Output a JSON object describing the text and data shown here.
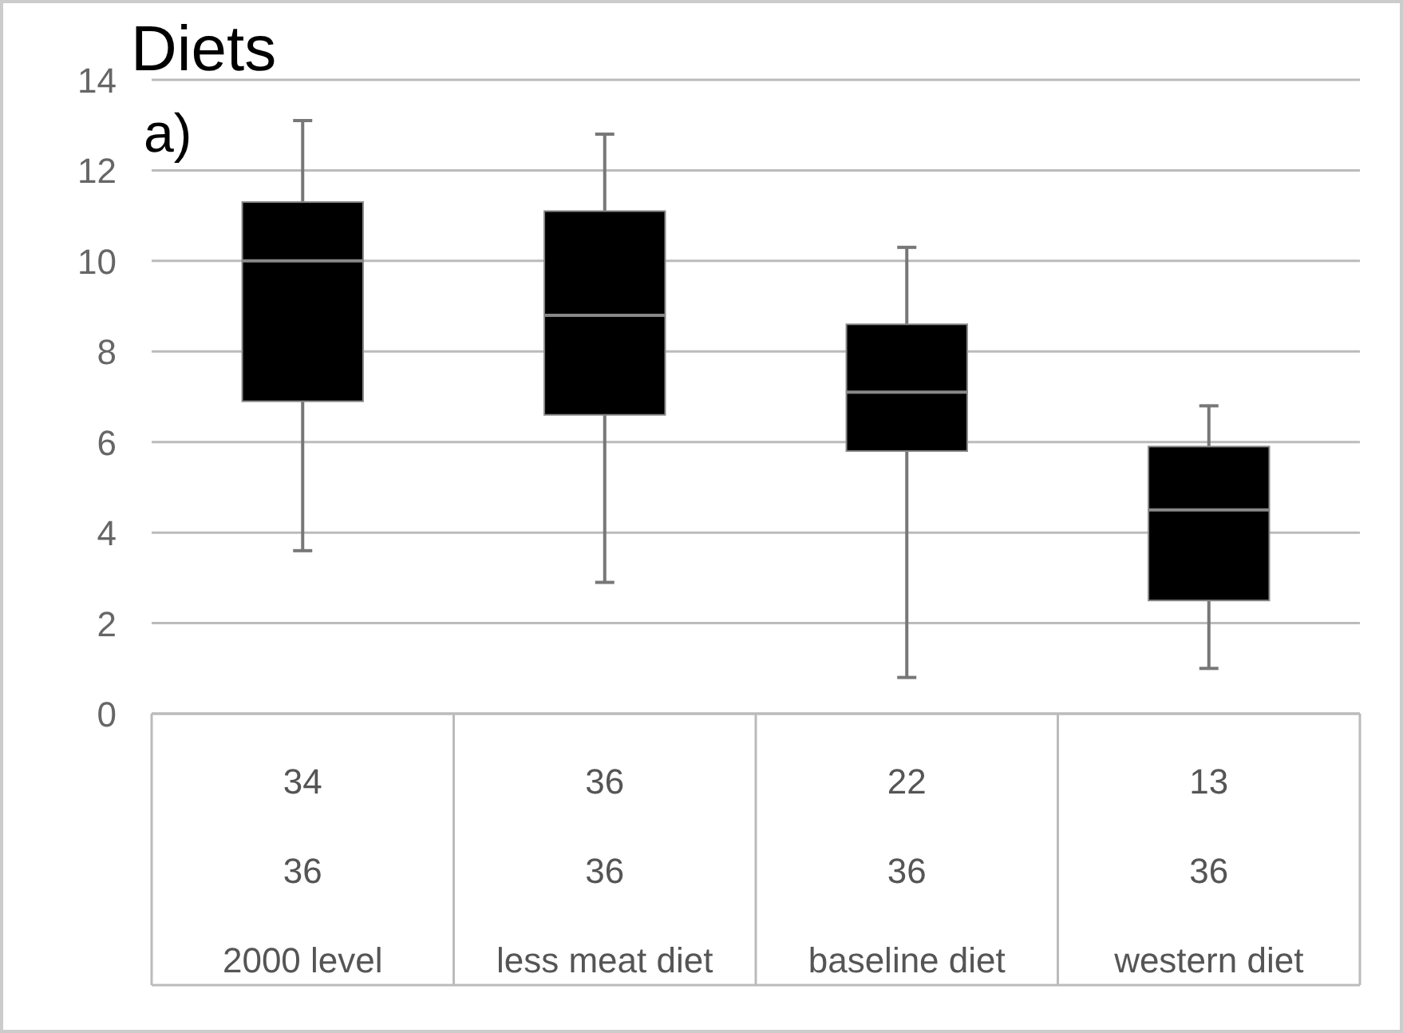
{
  "chart_data": {
    "type": "box",
    "title": "Diets",
    "subtitle": "a)",
    "categories": [
      "2000 level",
      "less meat diet",
      "baseline diet",
      "western diet"
    ],
    "boxes": [
      {
        "low": 3.6,
        "q1": 6.9,
        "median": 10.0,
        "q3": 11.3,
        "high": 13.1
      },
      {
        "low": 2.9,
        "q1": 6.6,
        "median": 8.8,
        "q3": 11.1,
        "high": 12.8
      },
      {
        "low": 0.8,
        "q1": 5.8,
        "median": 7.1,
        "q3": 8.6,
        "high": 10.3
      },
      {
        "low": 1.0,
        "q1": 2.5,
        "median": 4.5,
        "q3": 5.9,
        "high": 6.8
      }
    ],
    "color": "#000000",
    "ylim": [
      0,
      14
    ],
    "yticks": [
      0,
      2,
      4,
      6,
      8,
      10,
      12,
      14
    ],
    "grid": "y",
    "annotations": [
      "34",
      "36",
      "22",
      "13",
      "36",
      "36",
      "36",
      "36"
    ]
  }
}
